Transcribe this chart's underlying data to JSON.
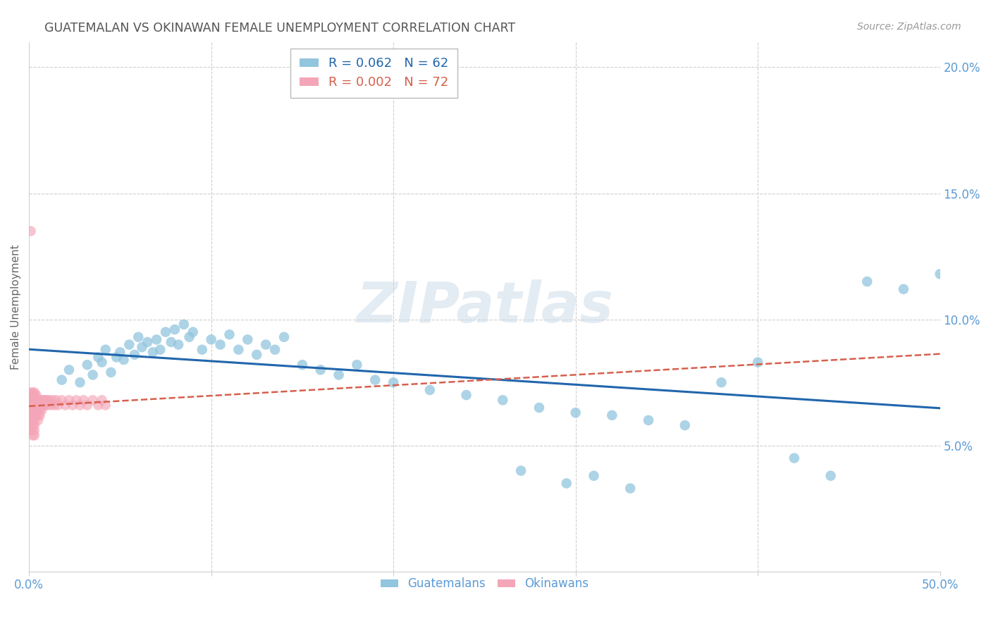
{
  "title": "GUATEMALAN VS OKINAWAN FEMALE UNEMPLOYMENT CORRELATION CHART",
  "source": "Source: ZipAtlas.com",
  "ylabel": "Female Unemployment",
  "xlim": [
    0.0,
    0.5
  ],
  "ylim": [
    0.0,
    0.21
  ],
  "xtick_vals": [
    0.0,
    0.1,
    0.2,
    0.3,
    0.4,
    0.5
  ],
  "xtick_labels": [
    "0.0%",
    "",
    "",
    "",
    "",
    "50.0%"
  ],
  "yticks_right": [
    0.05,
    0.1,
    0.15,
    0.2
  ],
  "ytick_labels_right": [
    "5.0%",
    "10.0%",
    "15.0%",
    "20.0%"
  ],
  "watermark": "ZIPatlas",
  "legend_blue_r": "0.062",
  "legend_blue_n": "62",
  "legend_pink_r": "0.002",
  "legend_pink_n": "72",
  "blue_color": "#92c5de",
  "pink_color": "#f4a6b8",
  "blue_line_color": "#2166ac",
  "pink_line_color": "#d6604d",
  "title_color": "#555555",
  "axis_color": "#5b9bd5",
  "grid_color": "#d0d0d0",
  "blue_scatter_x": [
    0.018,
    0.022,
    0.028,
    0.032,
    0.035,
    0.038,
    0.04,
    0.042,
    0.045,
    0.048,
    0.05,
    0.052,
    0.055,
    0.058,
    0.06,
    0.062,
    0.065,
    0.068,
    0.07,
    0.072,
    0.075,
    0.078,
    0.08,
    0.082,
    0.085,
    0.088,
    0.09,
    0.095,
    0.1,
    0.105,
    0.11,
    0.115,
    0.12,
    0.125,
    0.13,
    0.135,
    0.14,
    0.15,
    0.16,
    0.17,
    0.18,
    0.19,
    0.2,
    0.22,
    0.24,
    0.26,
    0.28,
    0.3,
    0.32,
    0.34,
    0.36,
    0.38,
    0.4,
    0.42,
    0.44,
    0.46,
    0.48,
    0.5,
    0.27,
    0.31,
    0.295,
    0.33
  ],
  "blue_scatter_y": [
    0.076,
    0.08,
    0.075,
    0.082,
    0.078,
    0.085,
    0.083,
    0.088,
    0.079,
    0.085,
    0.087,
    0.084,
    0.09,
    0.086,
    0.093,
    0.089,
    0.091,
    0.087,
    0.092,
    0.088,
    0.095,
    0.091,
    0.096,
    0.09,
    0.098,
    0.093,
    0.095,
    0.088,
    0.092,
    0.09,
    0.094,
    0.088,
    0.092,
    0.086,
    0.09,
    0.088,
    0.093,
    0.082,
    0.08,
    0.078,
    0.082,
    0.076,
    0.075,
    0.072,
    0.07,
    0.068,
    0.065,
    0.063,
    0.062,
    0.06,
    0.058,
    0.075,
    0.083,
    0.045,
    0.038,
    0.115,
    0.112,
    0.118,
    0.04,
    0.038,
    0.035,
    0.033
  ],
  "pink_scatter_x": [
    0.001,
    0.001,
    0.001,
    0.001,
    0.001,
    0.001,
    0.001,
    0.001,
    0.001,
    0.001,
    0.002,
    0.002,
    0.002,
    0.002,
    0.002,
    0.002,
    0.002,
    0.002,
    0.002,
    0.002,
    0.003,
    0.003,
    0.003,
    0.003,
    0.003,
    0.003,
    0.003,
    0.003,
    0.003,
    0.003,
    0.004,
    0.004,
    0.004,
    0.004,
    0.004,
    0.005,
    0.005,
    0.005,
    0.005,
    0.005,
    0.006,
    0.006,
    0.006,
    0.006,
    0.007,
    0.007,
    0.007,
    0.008,
    0.008,
    0.009,
    0.009,
    0.01,
    0.01,
    0.011,
    0.012,
    0.013,
    0.014,
    0.015,
    0.016,
    0.018,
    0.02,
    0.022,
    0.024,
    0.026,
    0.028,
    0.03,
    0.032,
    0.035,
    0.038,
    0.04,
    0.042,
    0.001
  ],
  "pink_scatter_y": [
    0.068,
    0.07,
    0.071,
    0.065,
    0.067,
    0.063,
    0.062,
    0.058,
    0.06,
    0.056,
    0.068,
    0.07,
    0.071,
    0.066,
    0.064,
    0.062,
    0.06,
    0.058,
    0.056,
    0.054,
    0.068,
    0.07,
    0.071,
    0.066,
    0.064,
    0.062,
    0.06,
    0.058,
    0.056,
    0.054,
    0.068,
    0.07,
    0.066,
    0.064,
    0.062,
    0.068,
    0.066,
    0.064,
    0.062,
    0.06,
    0.068,
    0.066,
    0.064,
    0.062,
    0.068,
    0.066,
    0.064,
    0.068,
    0.066,
    0.068,
    0.066,
    0.068,
    0.066,
    0.068,
    0.066,
    0.068,
    0.066,
    0.068,
    0.066,
    0.068,
    0.066,
    0.068,
    0.066,
    0.068,
    0.066,
    0.068,
    0.066,
    0.068,
    0.066,
    0.068,
    0.066,
    0.135
  ]
}
